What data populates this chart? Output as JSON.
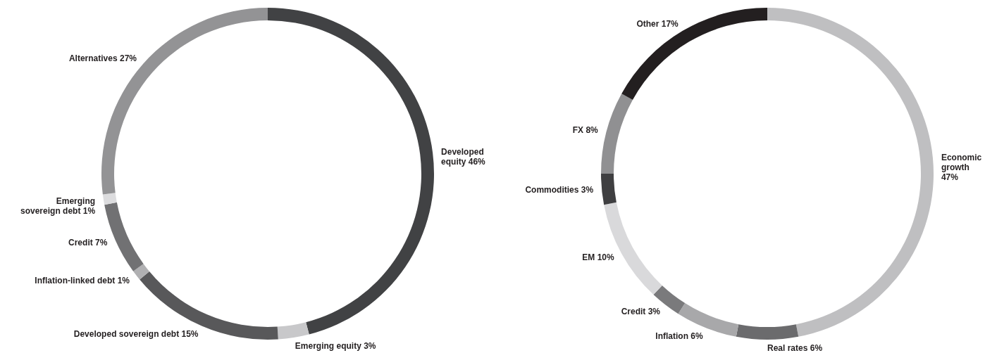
{
  "chart_data": [
    {
      "type": "donut",
      "categories": [
        "Developed equity",
        "Emerging equity",
        "Developed sovereign debt",
        "Inflation-linked debt",
        "Credit",
        "Emerging sovereign debt",
        "Alternatives"
      ],
      "values": [
        46,
        3,
        15,
        1,
        7,
        1,
        27
      ],
      "value_labels": [
        "46%",
        "3%",
        "15%",
        "1%",
        "7%",
        "1%",
        "27%"
      ],
      "colors": [
        "#414244",
        "#c8c8ca",
        "#58585a",
        "#b0b0b2",
        "#717173",
        "#dcdcde",
        "#939395"
      ],
      "legend": false
    },
    {
      "type": "donut",
      "categories": [
        "Economic growth",
        "Real rates",
        "Inflation",
        "Credit",
        "EM",
        "Commodities",
        "FX",
        "Other"
      ],
      "values": [
        47,
        6,
        6,
        3,
        10,
        3,
        8,
        17
      ],
      "value_labels": [
        "47%",
        "6%",
        "6%",
        "3%",
        "10%",
        "3%",
        "8%",
        "17%"
      ],
      "colors": [
        "#bfbfc1",
        "#6b6b6d",
        "#a8a8aa",
        "#7a7a7c",
        "#d9d9db",
        "#3f3f41",
        "#909092",
        "#231f20"
      ],
      "legend": false
    }
  ]
}
